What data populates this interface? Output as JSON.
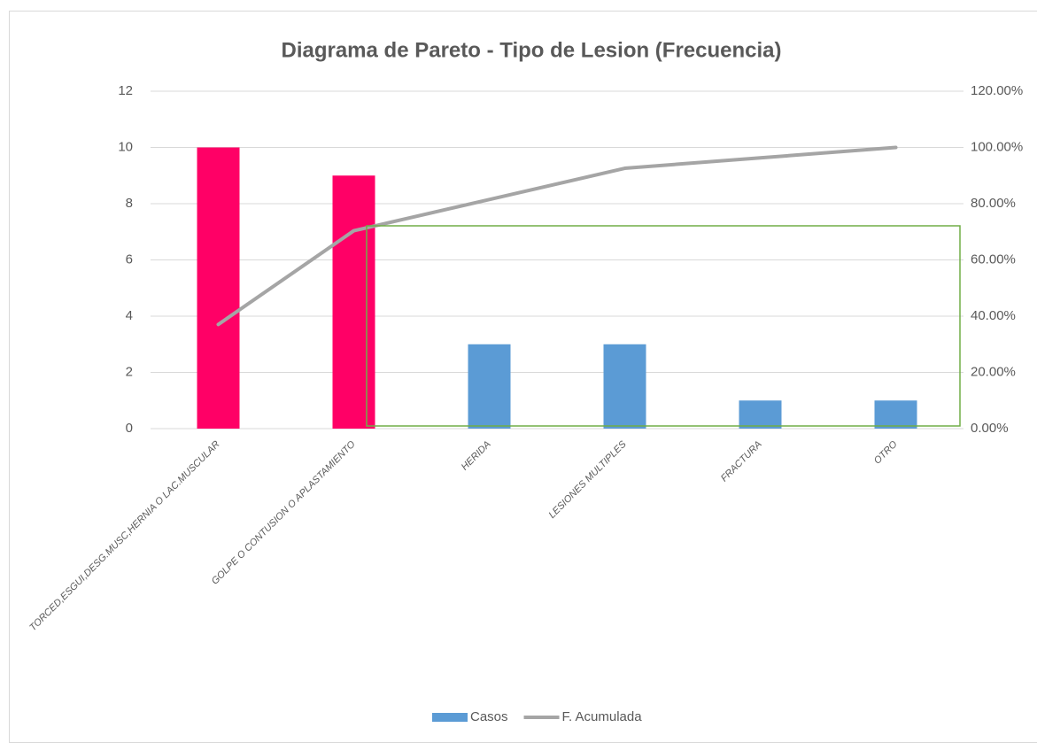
{
  "chart_data": {
    "type": "pareto",
    "title": "Diagrama de Pareto - Tipo de Lesion (Frecuencia)",
    "categories": [
      "TORCED,ESGUI,DESG.MUSC,HERNIA O LAC.MUSCULAR",
      "GOLPE O CONTUSION O APLASTAMIENTO",
      "HERIDA",
      "LESIONES MULTIPLES",
      "FRACTURA",
      "OTRO"
    ],
    "series": [
      {
        "name": "Casos",
        "type": "bar",
        "color": "#5b9bd5",
        "point_colors": [
          "#ff0066",
          "#ff0066",
          "#5b9bd5",
          "#5b9bd5",
          "#5b9bd5",
          "#5b9bd5"
        ],
        "values": [
          10,
          9,
          3,
          3,
          1,
          1
        ]
      },
      {
        "name": "F. Acumulada",
        "type": "line",
        "axis": "y2",
        "color": "#a5a5a5",
        "values": [
          37.04,
          70.37,
          81.48,
          92.59,
          96.3,
          100
        ]
      }
    ],
    "ylim": [
      0,
      12
    ],
    "yticks": [
      0,
      2,
      4,
      6,
      8,
      10,
      12
    ],
    "y2lim": [
      0,
      120
    ],
    "y2ticks": [
      {
        "value": 0,
        "label": "0.00%"
      },
      {
        "value": 20,
        "label": "20.00%"
      },
      {
        "value": 40,
        "label": "40.00%"
      },
      {
        "value": 60,
        "label": "60.00%"
      },
      {
        "value": 80,
        "label": "80.00%"
      },
      {
        "value": 100,
        "label": "100.00%"
      },
      {
        "value": 120,
        "label": "120.00%"
      }
    ],
    "grid": true,
    "legend": "bottom"
  }
}
